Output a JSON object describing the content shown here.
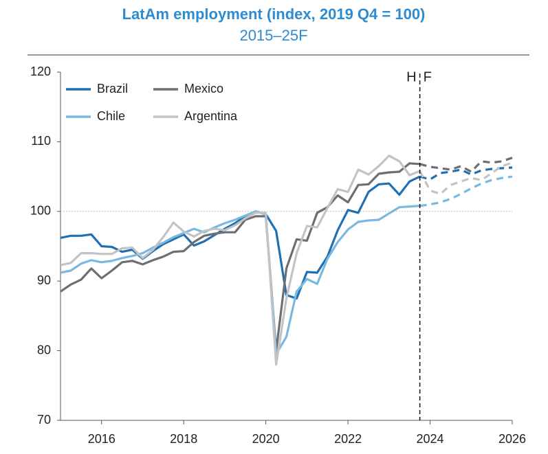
{
  "chart_data": {
    "type": "line",
    "title": "LatAm employment (index, 2019 Q4 = 100)",
    "subtitle": "2015–25F",
    "x": [
      2015,
      2015.25,
      2015.5,
      2015.75,
      2016,
      2016.25,
      2016.5,
      2016.75,
      2017,
      2017.25,
      2017.5,
      2017.75,
      2018,
      2018.25,
      2018.5,
      2018.75,
      2019,
      2019.25,
      2019.5,
      2019.75,
      2020,
      2020.25,
      2020.5,
      2020.75,
      2021,
      2021.25,
      2021.5,
      2021.75,
      2022,
      2022.25,
      2022.5,
      2022.75,
      2023,
      2023.25,
      2023.5,
      2023.75,
      2024,
      2024.25,
      2024.5,
      2024.75,
      2025,
      2025.25,
      2025.5,
      2025.75,
      2026
    ],
    "series": [
      {
        "name": "Brazil",
        "color": "#1f6fb4",
        "values": [
          96.2,
          96.5,
          96.5,
          96.7,
          95.0,
          94.9,
          94.2,
          94.5,
          93.2,
          94.3,
          95.3,
          96.0,
          96.7,
          95.1,
          95.7,
          96.6,
          97.5,
          98.3,
          99.3,
          100.0,
          99.6,
          97.2,
          88.0,
          87.5,
          91.3,
          91.2,
          93.5,
          97.3,
          100.2,
          99.8,
          102.8,
          103.9,
          104.0,
          102.4,
          104.3,
          105.0,
          104.6,
          105.5,
          105.7,
          106.0,
          105.3,
          105.9,
          106.1,
          106.2,
          106.3
        ]
      },
      {
        "name": "Mexico",
        "color": "#6d6e71",
        "values": [
          88.5,
          89.5,
          90.2,
          91.8,
          90.4,
          91.5,
          92.7,
          92.9,
          92.4,
          93.0,
          93.5,
          94.2,
          94.3,
          95.6,
          96.5,
          96.8,
          97.0,
          97.0,
          98.8,
          99.3,
          99.3,
          80.0,
          91.8,
          96.0,
          95.8,
          99.8,
          100.6,
          102.3,
          101.3,
          103.8,
          103.9,
          105.4,
          105.6,
          105.7,
          106.9,
          106.8,
          106.4,
          106.2,
          106.0,
          106.5,
          105.7,
          107.2,
          107.0,
          107.2,
          107.7
        ]
      },
      {
        "name": "Chile",
        "color": "#7ab8e0",
        "values": [
          91.2,
          91.5,
          92.5,
          93.0,
          92.7,
          92.9,
          93.3,
          93.6,
          94.0,
          94.8,
          95.5,
          96.3,
          96.9,
          97.5,
          97.0,
          97.7,
          98.3,
          98.8,
          99.4,
          100.0,
          99.6,
          79.5,
          82.0,
          88.5,
          90.3,
          89.6,
          93.2,
          95.6,
          97.4,
          98.5,
          98.7,
          98.8,
          99.7,
          100.6,
          100.7,
          100.8,
          101.0,
          101.3,
          101.8,
          102.5,
          103.3,
          104.0,
          104.5,
          104.8,
          105.0
        ]
      },
      {
        "name": "Argentina",
        "color": "#c3c3c5",
        "values": [
          92.3,
          92.6,
          94.0,
          94.0,
          93.9,
          93.9,
          94.7,
          94.8,
          93.3,
          94.5,
          96.3,
          98.4,
          97.1,
          96.4,
          97.2,
          97.5,
          97.3,
          98.0,
          99.0,
          99.8,
          99.8,
          78.0,
          87.5,
          94.0,
          97.9,
          97.7,
          100.5,
          103.2,
          102.8,
          106.0,
          105.3,
          106.5,
          108.0,
          107.2,
          105.2,
          105.8,
          103.0,
          102.5,
          103.8,
          104.3,
          104.8,
          104.5,
          105.5,
          106.5,
          107.0
        ]
      }
    ],
    "xlim": [
      2015,
      2026
    ],
    "xticks": [
      2016,
      2018,
      2020,
      2022,
      2024,
      2026
    ],
    "ylim": [
      70,
      120
    ],
    "yticks": [
      70,
      80,
      90,
      100,
      110,
      120
    ],
    "reference_line": 100,
    "forecast_from": 2023.75,
    "history_label": "H",
    "forecast_label": "F",
    "legend": "top-left"
  }
}
